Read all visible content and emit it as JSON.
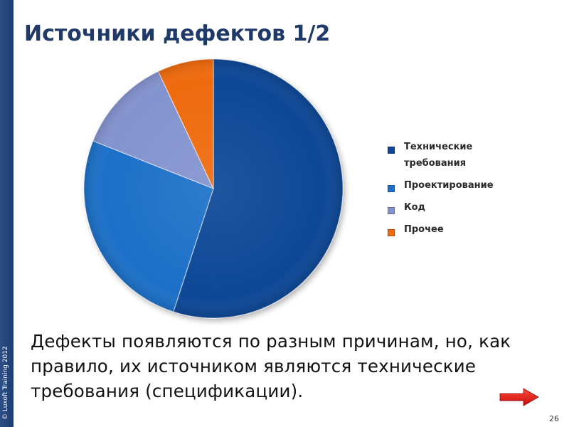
{
  "slide": {
    "title": "Источники дефектов 1/2",
    "copyright": "© Luxoft Training 2012",
    "body_text": "Дефекты появляются по разным причинам, но, как правило, их источником являются технические требования (спецификации).",
    "page_number": "26",
    "next_icon": "arrow-right-icon"
  },
  "chart_data": {
    "type": "pie",
    "title": "",
    "start_angle_deg": 0,
    "direction": "clockwise",
    "categories": [
      "Технические требования",
      "Проектирование",
      "Код",
      "Прочее"
    ],
    "values": [
      55,
      26,
      12,
      7
    ],
    "colors": [
      "#0f4696",
      "#1f6fc8",
      "#8393cf",
      "#ef6a10"
    ],
    "legend": {
      "position": "right",
      "items": [
        {
          "label": "Технические требования",
          "color": "#0f4696"
        },
        {
          "label": "Проектирование",
          "color": "#1f6fc8"
        },
        {
          "label": "Код",
          "color": "#8393cf"
        },
        {
          "label": "Прочее",
          "color": "#ef6a10"
        }
      ]
    }
  }
}
